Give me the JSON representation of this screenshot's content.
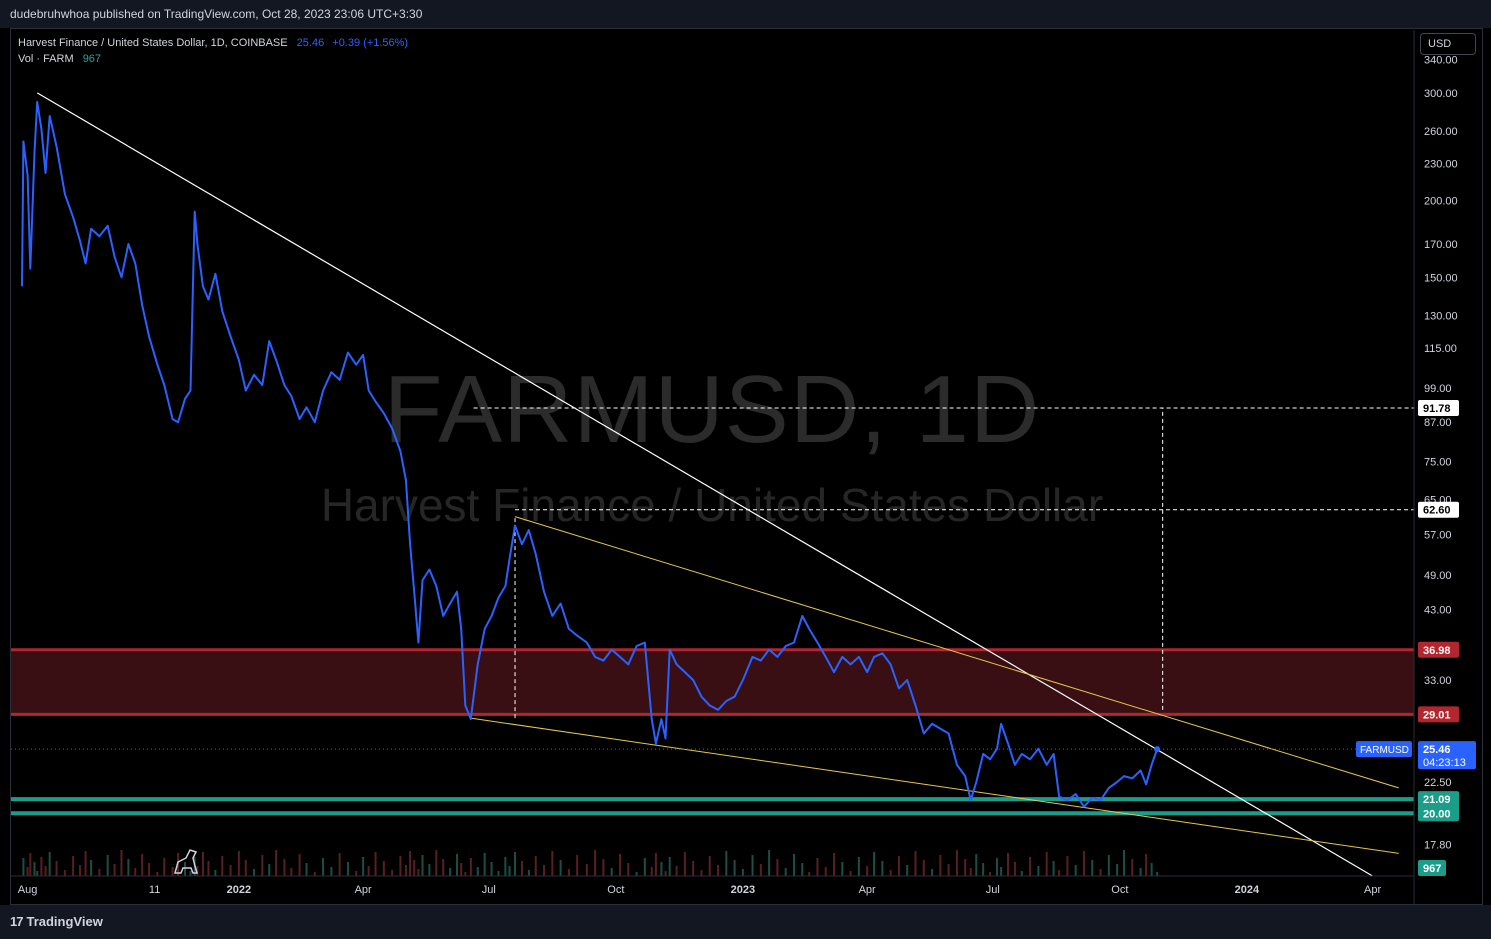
{
  "header": {
    "published": "dudebruhwhoa published on TradingView.com, Oct 28, 2023 23:06 UTC+3:30"
  },
  "legend": {
    "symbol": "Harvest Finance / United States Dollar, 1D, COINBASE",
    "last": "25.46",
    "change": "+0.39 (+1.56%)",
    "vol_label": "Vol · FARM",
    "vol_value": "967"
  },
  "currency": "USD",
  "watermark": {
    "ticker": "FARMUSD, 1D",
    "name": "Harvest Finance / United States Dollar"
  },
  "footer": {
    "brand": "TradingView",
    "brand_mark": "17"
  },
  "colors": {
    "price_line": "#2962ff",
    "trendline": "#ffffff",
    "wedge": "#e6c84a",
    "resistance_zone": "#3a0f14",
    "resistance_border": "#b2262f",
    "support": "#1a9e8a",
    "volume_up": "#1b4f45",
    "volume_down": "#5a1f22"
  },
  "chart_data": {
    "type": "line",
    "y_scale": "log",
    "ylim": [
      15.8,
      380
    ],
    "xlim": [
      "2021-07-20",
      "2024-05-01"
    ],
    "x_ticks": [
      {
        "date": "2021-08-01",
        "label": "Aug"
      },
      {
        "date": "2021-11-01",
        "label": "11"
      },
      {
        "date": "2022-01-01",
        "label": "2022"
      },
      {
        "date": "2022-04-01",
        "label": "Apr"
      },
      {
        "date": "2022-07-01",
        "label": "Jul"
      },
      {
        "date": "2022-10-01",
        "label": "Oct"
      },
      {
        "date": "2023-01-01",
        "label": "2023"
      },
      {
        "date": "2023-04-01",
        "label": "Apr"
      },
      {
        "date": "2023-07-01",
        "label": "Jul"
      },
      {
        "date": "2023-10-01",
        "label": "Oct"
      },
      {
        "date": "2024-01-01",
        "label": "2024"
      },
      {
        "date": "2024-04-01",
        "label": "Apr"
      }
    ],
    "y_ticks": [
      340,
      300,
      260,
      230,
      200,
      170,
      150,
      130,
      115,
      99,
      87,
      75,
      65,
      57,
      49,
      43,
      33,
      22.5,
      17.8
    ],
    "y_tick_labels": [
      "340.00",
      "300.00",
      "260.00",
      "230.00",
      "200.00",
      "170.00",
      "150.00",
      "130.00",
      "115.00",
      "99.00",
      "87.00",
      "75.00",
      "65.00",
      "57.00",
      "49.00",
      "43.00",
      "33.00",
      "22.50",
      "17.80"
    ],
    "series": [
      {
        "values": [
          [
            "2021-07-28",
            145
          ],
          [
            "2021-07-29",
            250
          ],
          [
            "2021-08-01",
            220
          ],
          [
            "2021-08-03",
            155
          ],
          [
            "2021-08-06",
            240
          ],
          [
            "2021-08-08",
            290
          ],
          [
            "2021-08-11",
            262
          ],
          [
            "2021-08-14",
            222
          ],
          [
            "2021-08-17",
            275
          ],
          [
            "2021-08-22",
            245
          ],
          [
            "2021-08-28",
            205
          ],
          [
            "2021-09-03",
            188
          ],
          [
            "2021-09-08",
            172
          ],
          [
            "2021-09-12",
            158
          ],
          [
            "2021-09-16",
            180
          ],
          [
            "2021-09-22",
            175
          ],
          [
            "2021-09-28",
            182
          ],
          [
            "2021-10-03",
            162
          ],
          [
            "2021-10-08",
            150
          ],
          [
            "2021-10-13",
            170
          ],
          [
            "2021-10-18",
            158
          ],
          [
            "2021-10-23",
            135
          ],
          [
            "2021-10-28",
            120
          ],
          [
            "2021-11-03",
            108
          ],
          [
            "2021-11-08",
            100
          ],
          [
            "2021-11-14",
            88
          ],
          [
            "2021-11-18",
            87
          ],
          [
            "2021-11-23",
            95
          ],
          [
            "2021-11-27",
            98
          ],
          [
            "2021-11-30",
            192
          ],
          [
            "2021-12-02",
            170
          ],
          [
            "2021-12-06",
            145
          ],
          [
            "2021-12-10",
            138
          ],
          [
            "2021-12-15",
            152
          ],
          [
            "2021-12-20",
            132
          ],
          [
            "2021-12-26",
            120
          ],
          [
            "2022-01-01",
            110
          ],
          [
            "2022-01-06",
            98
          ],
          [
            "2022-01-12",
            104
          ],
          [
            "2022-01-18",
            100
          ],
          [
            "2022-01-23",
            118
          ],
          [
            "2022-01-28",
            110
          ],
          [
            "2022-02-03",
            100
          ],
          [
            "2022-02-08",
            96
          ],
          [
            "2022-02-14",
            88
          ],
          [
            "2022-02-19",
            92
          ],
          [
            "2022-02-25",
            87
          ],
          [
            "2022-03-03",
            98
          ],
          [
            "2022-03-09",
            105
          ],
          [
            "2022-03-15",
            102
          ],
          [
            "2022-03-21",
            113
          ],
          [
            "2022-03-27",
            108
          ],
          [
            "2022-04-01",
            112
          ],
          [
            "2022-04-05",
            98
          ],
          [
            "2022-04-10",
            94
          ],
          [
            "2022-04-16",
            90
          ],
          [
            "2022-04-22",
            85
          ],
          [
            "2022-04-28",
            78
          ],
          [
            "2022-05-02",
            70
          ],
          [
            "2022-05-05",
            55
          ],
          [
            "2022-05-08",
            46
          ],
          [
            "2022-05-11",
            38
          ],
          [
            "2022-05-14",
            48
          ],
          [
            "2022-05-19",
            50
          ],
          [
            "2022-05-24",
            47
          ],
          [
            "2022-05-29",
            42
          ],
          [
            "2022-06-03",
            44
          ],
          [
            "2022-06-08",
            46
          ],
          [
            "2022-06-11",
            40
          ],
          [
            "2022-06-14",
            30
          ],
          [
            "2022-06-18",
            28.5
          ],
          [
            "2022-06-23",
            35
          ],
          [
            "2022-06-28",
            40
          ],
          [
            "2022-07-03",
            42
          ],
          [
            "2022-07-08",
            45
          ],
          [
            "2022-07-13",
            47
          ],
          [
            "2022-07-16",
            52
          ],
          [
            "2022-07-20",
            59
          ],
          [
            "2022-07-25",
            55
          ],
          [
            "2022-07-30",
            58
          ],
          [
            "2022-08-04",
            53
          ],
          [
            "2022-08-10",
            46
          ],
          [
            "2022-08-16",
            42
          ],
          [
            "2022-08-22",
            44
          ],
          [
            "2022-08-28",
            40
          ],
          [
            "2022-09-03",
            39
          ],
          [
            "2022-09-10",
            38
          ],
          [
            "2022-09-16",
            36
          ],
          [
            "2022-09-22",
            35.5
          ],
          [
            "2022-09-28",
            37
          ],
          [
            "2022-10-04",
            36
          ],
          [
            "2022-10-10",
            35
          ],
          [
            "2022-10-16",
            37.5
          ],
          [
            "2022-10-22",
            38
          ],
          [
            "2022-10-27",
            28.5
          ],
          [
            "2022-10-30",
            26
          ],
          [
            "2022-11-03",
            28.5
          ],
          [
            "2022-11-06",
            26.5
          ],
          [
            "2022-11-09",
            37
          ],
          [
            "2022-11-14",
            35
          ],
          [
            "2022-11-20",
            34
          ],
          [
            "2022-11-26",
            33
          ],
          [
            "2022-12-02",
            31
          ],
          [
            "2022-12-08",
            30
          ],
          [
            "2022-12-14",
            29.5
          ],
          [
            "2022-12-20",
            30.5
          ],
          [
            "2022-12-26",
            31
          ],
          [
            "2023-01-01",
            33
          ],
          [
            "2023-01-08",
            36
          ],
          [
            "2023-01-14",
            35.5
          ],
          [
            "2023-01-20",
            37
          ],
          [
            "2023-01-26",
            36
          ],
          [
            "2023-02-01",
            37.5
          ],
          [
            "2023-02-07",
            38
          ],
          [
            "2023-02-13",
            42
          ],
          [
            "2023-02-18",
            40
          ],
          [
            "2023-02-24",
            38
          ],
          [
            "2023-03-02",
            36
          ],
          [
            "2023-03-08",
            34
          ],
          [
            "2023-03-14",
            36
          ],
          [
            "2023-03-20",
            35
          ],
          [
            "2023-03-26",
            36
          ],
          [
            "2023-04-01",
            34
          ],
          [
            "2023-04-06",
            36
          ],
          [
            "2023-04-12",
            36.5
          ],
          [
            "2023-04-18",
            35
          ],
          [
            "2023-04-24",
            32
          ],
          [
            "2023-04-30",
            33
          ],
          [
            "2023-05-06",
            30
          ],
          [
            "2023-05-12",
            27
          ],
          [
            "2023-05-18",
            28
          ],
          [
            "2023-05-24",
            27.5
          ],
          [
            "2023-05-30",
            27
          ],
          [
            "2023-06-05",
            24
          ],
          [
            "2023-06-11",
            23
          ],
          [
            "2023-06-15",
            21
          ],
          [
            "2023-06-19",
            22.5
          ],
          [
            "2023-06-24",
            25
          ],
          [
            "2023-06-29",
            24.5
          ],
          [
            "2023-07-04",
            25.5
          ],
          [
            "2023-07-07",
            28
          ],
          [
            "2023-07-12",
            26
          ],
          [
            "2023-07-17",
            24
          ],
          [
            "2023-07-22",
            25
          ],
          [
            "2023-07-28",
            24.5
          ],
          [
            "2023-08-03",
            25.5
          ],
          [
            "2023-08-09",
            24
          ],
          [
            "2023-08-14",
            25
          ],
          [
            "2023-08-18",
            21.3
          ],
          [
            "2023-08-24",
            21
          ],
          [
            "2023-08-30",
            21.5
          ],
          [
            "2023-09-05",
            20.5
          ],
          [
            "2023-09-11",
            21.2
          ],
          [
            "2023-09-17",
            21
          ],
          [
            "2023-09-23",
            22
          ],
          [
            "2023-09-29",
            22.5
          ],
          [
            "2023-10-04",
            23
          ],
          [
            "2023-10-10",
            22.8
          ],
          [
            "2023-10-16",
            23.5
          ],
          [
            "2023-10-20",
            22.3
          ],
          [
            "2023-10-24",
            24
          ],
          [
            "2023-10-28",
            25.46
          ]
        ]
      }
    ],
    "annotations": {
      "resistance_zone": [
        29.01,
        36.98
      ],
      "support_levels": [
        20.0,
        21.09
      ],
      "price_labels": [
        {
          "value": 91.78,
          "label": "91.78"
        },
        {
          "value": 62.6,
          "label": "62.60"
        },
        {
          "value": 36.98,
          "label": "36.98"
        },
        {
          "value": 29.01,
          "label": "29.01"
        },
        {
          "value": 21.09,
          "label": "21.09"
        },
        {
          "value": 20.0,
          "label": "20.00"
        }
      ],
      "current_price": {
        "value": 25.46,
        "label": "25.46",
        "countdown": "04:23:13",
        "symbol": "FARMUSD"
      },
      "volume_label": "967",
      "trendline": [
        [
          "2021-08-08",
          300
        ],
        [
          "2024-04-01",
          15.8
        ]
      ],
      "wedge_upper": [
        [
          "2022-07-20",
          61
        ],
        [
          "2024-04-20",
          22
        ]
      ],
      "wedge_lower": [
        [
          "2022-06-18",
          28.6
        ],
        [
          "2024-04-20",
          17.2
        ]
      ],
      "measure_v1": {
        "date": "2022-07-20",
        "from": 28.6,
        "to": 61
      },
      "measure_h1": {
        "from": "2022-07-20",
        "to": "2023-11-01",
        "value": 62.6
      },
      "measure_h2": {
        "from": "2022-06-20",
        "to": "2023-11-01",
        "value": 91.78
      },
      "measure_v2": {
        "date": "2023-11-01",
        "from": 29.5,
        "to": 91.78
      }
    }
  }
}
